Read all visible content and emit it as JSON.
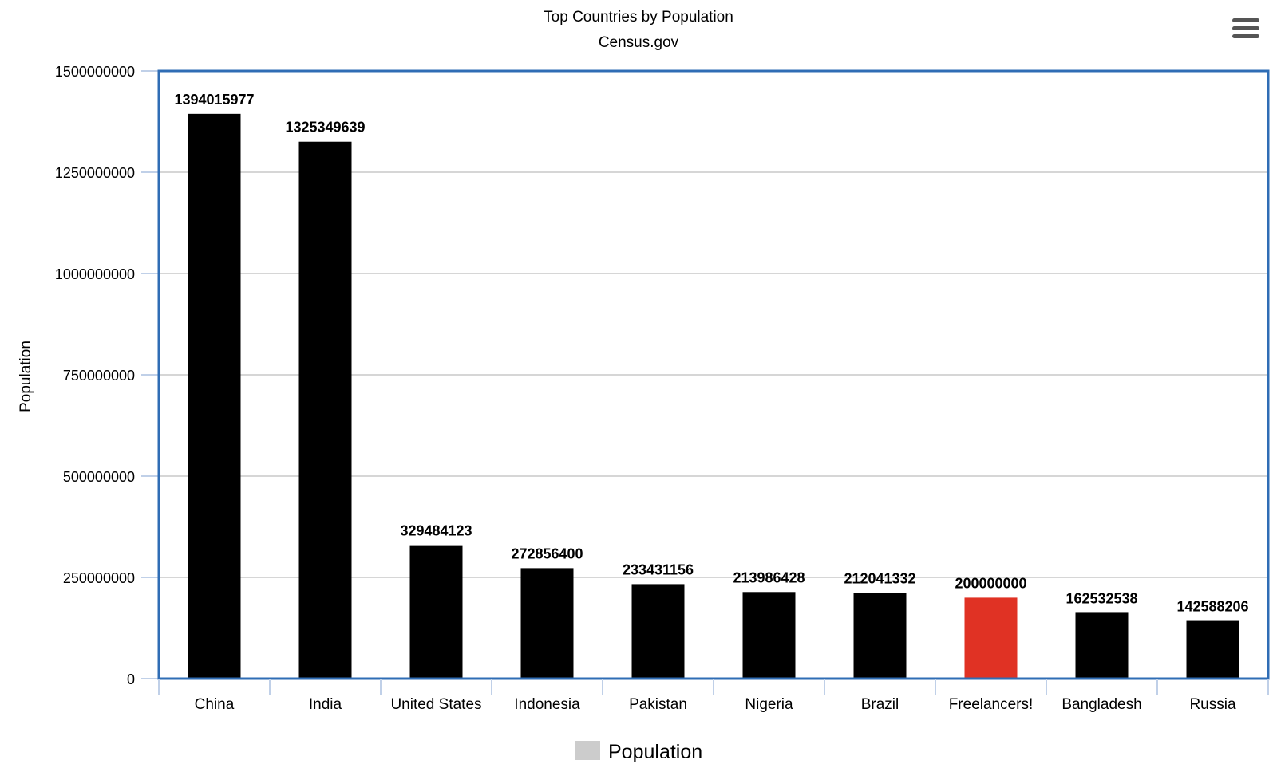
{
  "chart_data": {
    "type": "bar",
    "title": "Top Countries by Population",
    "subtitle": "Census.gov",
    "ylabel": "Population",
    "xlabel": "",
    "ylim": [
      0,
      1500000000
    ],
    "yticks": [
      "0",
      "250000000",
      "500000000",
      "750000000",
      "1000000000",
      "1250000000",
      "1500000000"
    ],
    "categories": [
      "China",
      "India",
      "United States",
      "Indonesia",
      "Pakistan",
      "Nigeria",
      "Brazil",
      "Freelancers!",
      "Bangladesh",
      "Russia"
    ],
    "values": [
      1394015977,
      1325349639,
      329484123,
      272856400,
      233431156,
      213986428,
      212041332,
      200000000,
      162532538,
      142588206
    ],
    "value_labels": [
      "1394015977",
      "1325349639",
      "329484123",
      "272856400",
      "233431156",
      "213986428",
      "212041332",
      "200000000",
      "162532538",
      "142588206"
    ],
    "bar_colors": [
      "#000000",
      "#000000",
      "#000000",
      "#000000",
      "#000000",
      "#000000",
      "#000000",
      "#e03224",
      "#000000",
      "#000000"
    ],
    "grid": true,
    "legend": {
      "position": "bottom-center",
      "label": "Population",
      "swatch_color": "#cccccc"
    },
    "frame_color": "#2f6db5"
  },
  "toolbar": {
    "menu_icon": "hamburger-menu-icon"
  }
}
